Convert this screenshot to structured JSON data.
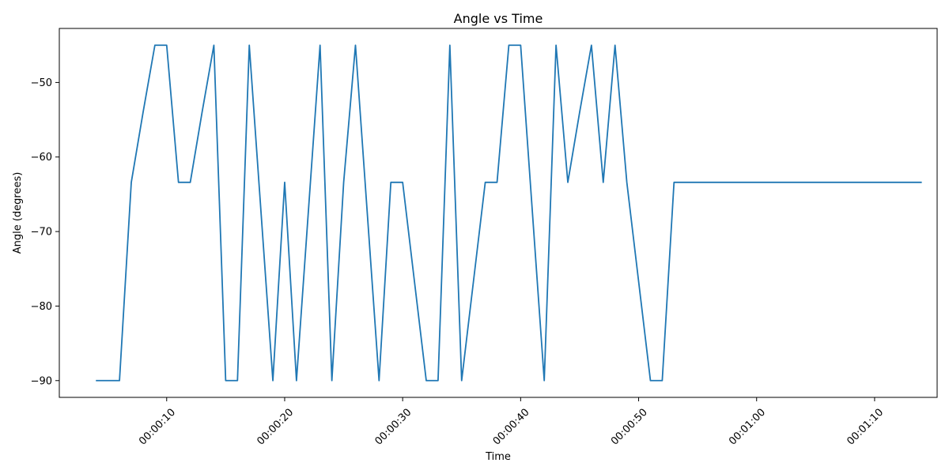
{
  "chart_data": {
    "type": "line",
    "title": "Angle vs Time",
    "xlabel": "Time",
    "ylabel": "Angle (degrees)",
    "x_unit": "seconds",
    "xlim": [
      0.9,
      75.3
    ],
    "ylim": [
      -92.25,
      -42.75
    ],
    "xticks": [
      {
        "value": 10,
        "label": "00:00:10"
      },
      {
        "value": 20,
        "label": "00:00:20"
      },
      {
        "value": 30,
        "label": "00:00:30"
      },
      {
        "value": 40,
        "label": "00:00:40"
      },
      {
        "value": 50,
        "label": "00:00:50"
      },
      {
        "value": 60,
        "label": "00:01:00"
      },
      {
        "value": 70,
        "label": "00:01:10"
      }
    ],
    "yticks": [
      {
        "value": -50,
        "label": "−50"
      },
      {
        "value": -60,
        "label": "−60"
      },
      {
        "value": -70,
        "label": "−70"
      },
      {
        "value": -80,
        "label": "−80"
      },
      {
        "value": -90,
        "label": "−90"
      }
    ],
    "grid": false,
    "series": [
      {
        "color": "#1f77b4",
        "x": [
          4,
          5,
          6,
          7,
          8,
          9,
          10,
          11,
          12,
          13,
          14,
          15,
          16,
          17,
          18,
          19,
          20,
          21,
          22,
          23,
          24,
          25,
          26,
          27,
          28,
          29,
          30,
          31,
          32,
          33,
          34,
          35,
          36,
          37,
          38,
          39,
          40,
          41,
          42,
          43,
          44,
          45,
          46,
          47,
          48,
          49,
          50,
          51,
          52,
          53,
          54,
          55,
          56,
          57,
          58,
          59,
          60,
          61,
          62,
          63,
          64,
          65,
          66,
          67,
          68,
          69,
          70,
          71,
          72,
          73,
          74
        ],
        "y": [
          -90,
          -90,
          -90,
          -63.4,
          -54,
          -45,
          -45,
          -63.4,
          -63.4,
          -54,
          -45,
          -90,
          -90,
          -45,
          -67.5,
          -90,
          -63.4,
          -90,
          -67.5,
          -45,
          -90,
          -63.4,
          -45,
          -67.5,
          -90,
          -63.4,
          -63.4,
          -76.7,
          -90,
          -90,
          -45,
          -90,
          -76.7,
          -63.4,
          -63.4,
          -45,
          -45,
          -67.5,
          -90,
          -45,
          -63.4,
          -54,
          -45,
          -63.4,
          -45,
          -63.4,
          -76.7,
          -90,
          -90,
          -63.4,
          -63.4,
          -63.4,
          -63.4,
          -63.4,
          -63.4,
          -63.4,
          -63.4,
          -63.4,
          -63.4,
          -63.4,
          -63.4,
          -63.4,
          -63.4,
          -63.4,
          -63.4,
          -63.4,
          -63.4,
          -63.4,
          -63.4,
          -63.4,
          -63.4
        ]
      }
    ]
  }
}
